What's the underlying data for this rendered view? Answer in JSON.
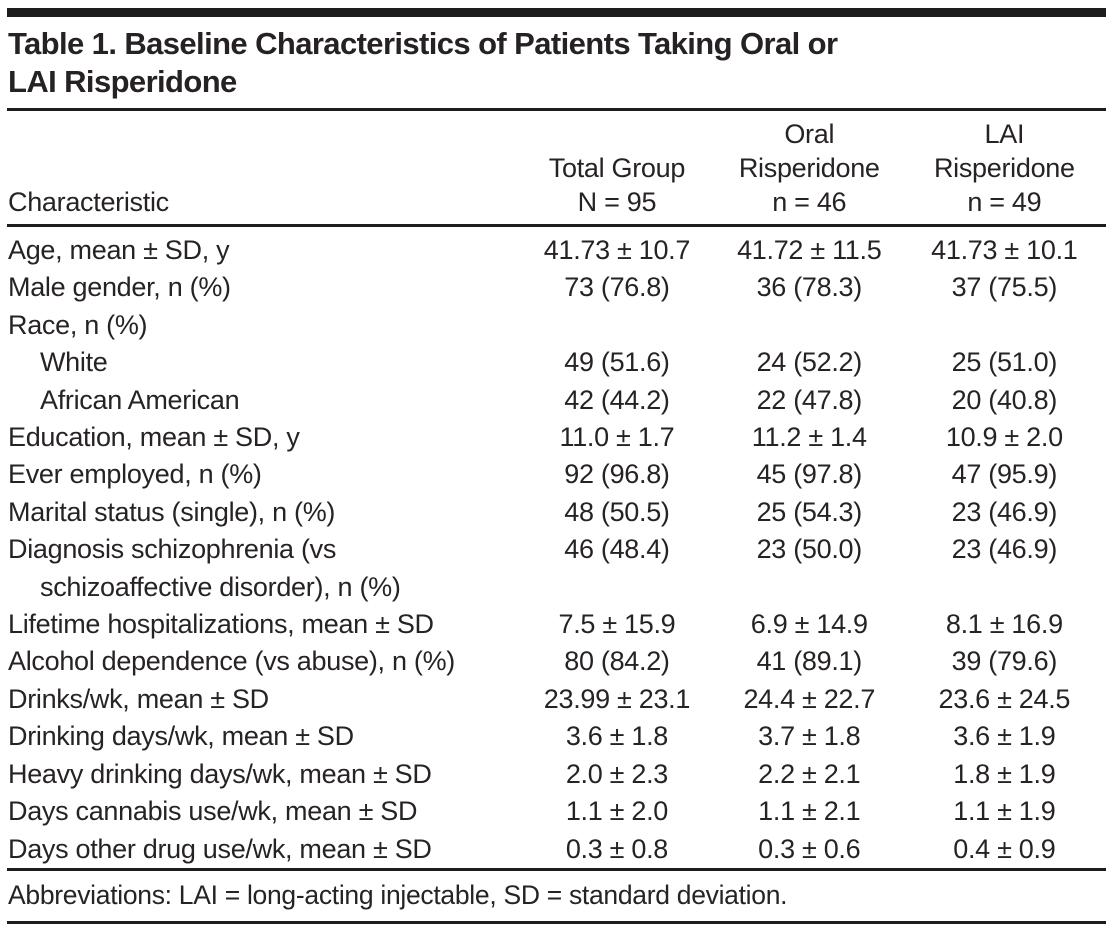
{
  "title": {
    "line1": "Table 1. Baseline Characteristics of Patients Taking Oral or",
    "line2": "LAI Risperidone"
  },
  "table": {
    "columns": [
      {
        "id": "characteristic",
        "label_lines": [
          "Characteristic"
        ]
      },
      {
        "id": "total-group",
        "label_lines": [
          "Total Group",
          "N = 95"
        ]
      },
      {
        "id": "oral-risperidone",
        "label_lines": [
          "Oral",
          "Risperidone",
          "n = 46"
        ]
      },
      {
        "id": "lai-risperidone",
        "label_lines": [
          "LAI",
          "Risperidone",
          "n = 49"
        ]
      }
    ],
    "rows": [
      {
        "label": "Age, mean ± SD, y",
        "indent": false,
        "values": [
          "41.73 ± 10.7",
          "41.72 ± 11.5",
          "41.73 ± 10.1"
        ]
      },
      {
        "label": "Male gender, n (%)",
        "indent": false,
        "values": [
          "73 (76.8)",
          "36 (78.3)",
          "37 (75.5)"
        ]
      },
      {
        "label": "Race, n (%)",
        "indent": false,
        "values": [
          "",
          "",
          ""
        ]
      },
      {
        "label": "White",
        "indent": true,
        "values": [
          "49 (51.6)",
          "24 (52.2)",
          "25 (51.0)"
        ]
      },
      {
        "label": "African American",
        "indent": true,
        "values": [
          "42 (44.2)",
          "22 (47.8)",
          "20 (40.8)"
        ]
      },
      {
        "label": "Education, mean ± SD, y",
        "indent": false,
        "values": [
          "11.0 ± 1.7",
          "11.2 ± 1.4",
          "10.9 ± 2.0"
        ]
      },
      {
        "label": "Ever employed, n (%)",
        "indent": false,
        "values": [
          "92 (96.8)",
          "45 (97.8)",
          "47 (95.9)"
        ]
      },
      {
        "label": "Marital status (single), n (%)",
        "indent": false,
        "values": [
          "48 (50.5)",
          "25 (54.3)",
          "23 (46.9)"
        ]
      },
      {
        "label": "Diagnosis schizophrenia (vs",
        "label_cont": "schizoaffective disorder), n (%)",
        "indent": false,
        "values": [
          "46 (48.4)",
          "23 (50.0)",
          "23 (46.9)"
        ]
      },
      {
        "label": "Lifetime hospitalizations, mean ± SD",
        "indent": false,
        "values": [
          "7.5 ± 15.9",
          "6.9 ± 14.9",
          "8.1 ± 16.9"
        ]
      },
      {
        "label": "Alcohol dependence (vs abuse), n (%)",
        "indent": false,
        "values": [
          "80 (84.2)",
          "41 (89.1)",
          "39 (79.6)"
        ]
      },
      {
        "label": "Drinks/wk, mean ± SD",
        "indent": false,
        "values": [
          "23.99 ± 23.1",
          "24.4 ± 22.7",
          "23.6 ± 24.5"
        ]
      },
      {
        "label": "Drinking days/wk, mean ± SD",
        "indent": false,
        "values": [
          "3.6 ± 1.8",
          "3.7 ± 1.8",
          "3.6 ± 1.9"
        ]
      },
      {
        "label": "Heavy drinking days/wk, mean ± SD",
        "indent": false,
        "values": [
          "2.0 ± 2.3",
          "2.2 ± 2.1",
          "1.8 ± 1.9"
        ]
      },
      {
        "label": "Days cannabis use/wk, mean ± SD",
        "indent": false,
        "values": [
          "1.1 ± 2.0",
          "1.1 ± 2.1",
          "1.1 ± 1.9"
        ]
      },
      {
        "label": "Days other drug use/wk, mean ± SD",
        "indent": false,
        "values": [
          "0.3 ± 0.8",
          "0.3 ± 0.6",
          "0.4 ± 0.9"
        ]
      }
    ]
  },
  "footnote": "Abbreviations: LAI = long-acting injectable, SD = standard deviation.",
  "colors": {
    "background": "#ffffff",
    "text": "#272324",
    "rule": "#1d1d1d"
  }
}
